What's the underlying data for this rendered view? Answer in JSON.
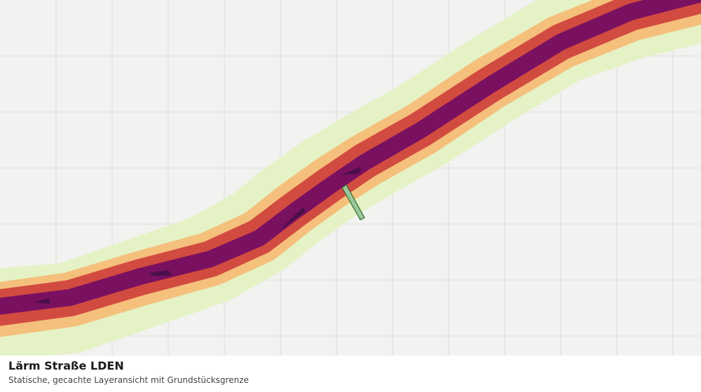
{
  "map": {
    "title": "Lärm Straße LDEN",
    "subtitle": "Statische, gecachte Layeransicht mit Grundstücksgrenze"
  }
}
